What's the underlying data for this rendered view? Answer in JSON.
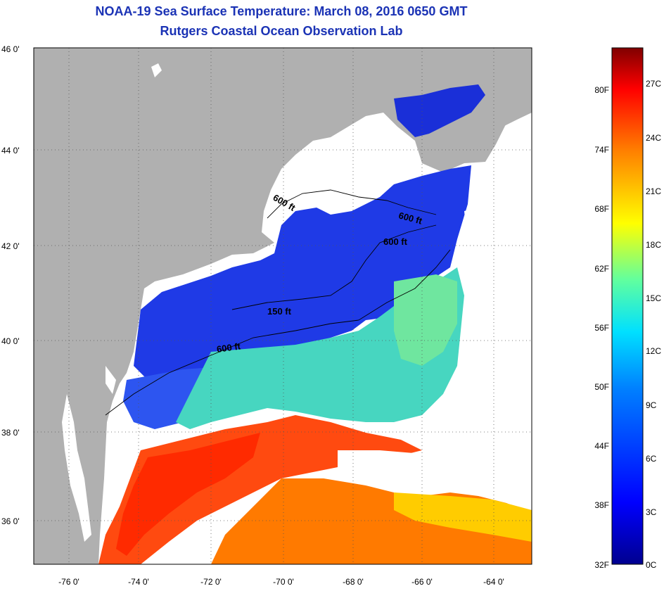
{
  "titles": {
    "line1": "NOAA-19 Sea Surface Temperature:  March 08, 2016 0650 GMT",
    "line2": "Rutgers Coastal Ocean Observation Lab"
  },
  "lat_labels": [
    "46 0'",
    "44 0'",
    "42 0'",
    "40 0'",
    "38 0'",
    "36 0'"
  ],
  "lon_labels": [
    "-76 0'",
    "-74 0'",
    "-72 0'",
    "-70 0'",
    "-68 0'",
    "-66 0'",
    "-64 0'"
  ],
  "depth_labels": [
    "600 ft",
    "600 ft",
    "600 ft",
    "150 ft",
    "600 ft"
  ],
  "colorbar": {
    "fahrenheit": [
      "80F",
      "74F",
      "68F",
      "62F",
      "56F",
      "50F",
      "44F",
      "38F",
      "32F"
    ],
    "celsius": [
      "27C",
      "24C",
      "21C",
      "18C",
      "15C",
      "12C",
      "9C",
      "6C",
      "3C",
      "0C"
    ],
    "colors": [
      "#00008f",
      "#0000ff",
      "#0080ff",
      "#00ffff",
      "#80ff80",
      "#ffff00",
      "#ff8000",
      "#ff0000",
      "#800000"
    ]
  },
  "colors": {
    "land": "#b0b0b0",
    "cloud": "#ffffff",
    "title": "#1b33b5"
  }
}
